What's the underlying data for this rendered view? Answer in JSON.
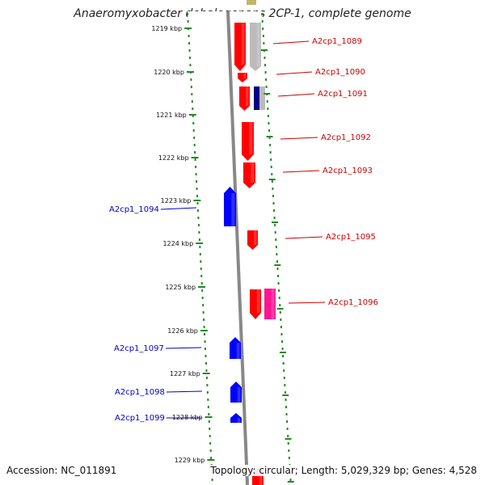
{
  "title": "Anaeromyxobacter dehalogenans 2CP-1, complete genome",
  "footer": {
    "accession": "Accession: NC_011891",
    "summary": "Topology: circular; Length: 5,029,329 bp; Genes: 4,528"
  },
  "colors": {
    "forward_gene": "#ff0000",
    "reverse_gene": "#0000ff",
    "rna_gene": "#ff1493",
    "neighbor_gene": "#bbbbbb",
    "backbone": "#888888",
    "tick_outer": "#228b22",
    "label_forward": "#cc0000",
    "label_reverse": "#0000cc"
  },
  "scale": {
    "unit": "kbp",
    "ticks": [
      "1219 kbp",
      "1220 kbp",
      "1221 kbp",
      "1222 kbp",
      "1223 kbp",
      "1224 kbp",
      "1225 kbp",
      "1226 kbp",
      "1227 kbp",
      "1228 kbp",
      "1229 kbp"
    ]
  },
  "genes": [
    {
      "label": "A2cp1_1089",
      "strand": "forward"
    },
    {
      "label": "A2cp1_1090",
      "strand": "forward"
    },
    {
      "label": "A2cp1_1091",
      "strand": "forward"
    },
    {
      "label": "A2cp1_1092",
      "strand": "forward"
    },
    {
      "label": "A2cp1_1093",
      "strand": "forward"
    },
    {
      "label": "A2cp1_1094",
      "strand": "reverse"
    },
    {
      "label": "A2cp1_1095",
      "strand": "forward"
    },
    {
      "label": "A2cp1_1096",
      "strand": "forward"
    },
    {
      "label": "A2cp1_1097",
      "strand": "reverse"
    },
    {
      "label": "A2cp1_1098",
      "strand": "reverse"
    },
    {
      "label": "A2cp1_1099",
      "strand": "reverse"
    }
  ]
}
